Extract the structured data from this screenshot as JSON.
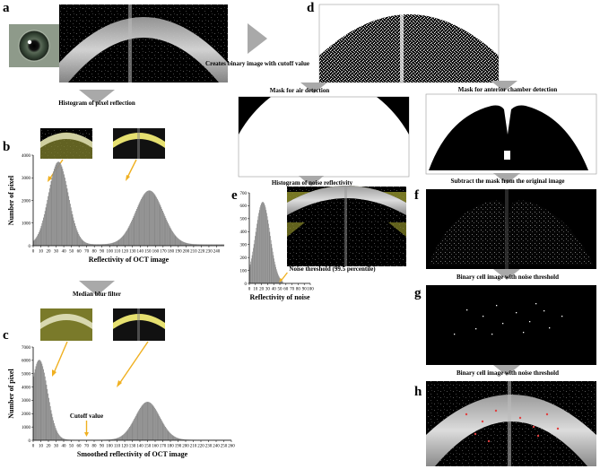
{
  "panel_labels": {
    "a": "a",
    "b": "b",
    "c": "c",
    "d": "d",
    "e": "e",
    "f": "f",
    "g": "g",
    "h": "h"
  },
  "captions": {
    "binary_cutoff": "Creates binary image with cutoff value",
    "histogram_pixel": "Histogram of pixel reflection",
    "median_blur": "Median blur filter",
    "mask_air": "Mask for air detection",
    "mask_ac": "Mask for anterior chamber detection",
    "histogram_noise": "Histogram of noise reflectivity",
    "subtract_mask": "Subtract the mask from the original image",
    "binary_cell_1": "Binary cell image with noise threshold",
    "binary_cell_2": "Binary cell image with noise threshold"
  },
  "colors": {
    "bars": "#8a8a8a",
    "arrow": "#f0b020",
    "highlight": "#d8d020",
    "flow_arrow": "#a9a9a9",
    "cell_dots": "#e04040"
  },
  "chart_data": [
    {
      "type": "bar",
      "panel": "b",
      "xlabel": "Reflectivity of OCT image",
      "ylabel": "Number of pixel",
      "xlim": [
        0,
        250
      ],
      "ylim": [
        0,
        4000
      ],
      "xticks": [
        "0",
        "10",
        "20",
        "30",
        "40",
        "50",
        "60",
        "70",
        "80",
        "90",
        "100",
        "110",
        "120",
        "130",
        "140",
        "150",
        "160",
        "170",
        "180",
        "190",
        "200",
        "210",
        "220",
        "230",
        "240"
      ],
      "yticks": [
        "0",
        "1000",
        "2000",
        "3000",
        "4000"
      ],
      "peaks": [
        {
          "center": 33,
          "height": 3650,
          "width": 13
        },
        {
          "center": 152,
          "height": 2380,
          "width": 18
        }
      ],
      "floor": 60
    },
    {
      "type": "bar",
      "panel": "c",
      "xlabel": "Smoothed reflectivity of OCT image",
      "ylabel": "Number of pixel",
      "annotation": "Cutoff value",
      "cutoff": 70,
      "xlim": [
        0,
        260
      ],
      "ylim": [
        0,
        7000
      ],
      "xticks": [
        "0",
        "10",
        "20",
        "30",
        "40",
        "50",
        "60",
        "70",
        "80",
        "90",
        "100",
        "110",
        "120",
        "130",
        "140",
        "150",
        "160",
        "170",
        "180",
        "190",
        "200",
        "210",
        "220",
        "230",
        "240",
        "250",
        "260"
      ],
      "yticks": [
        "0",
        "1000",
        "2000",
        "3000",
        "4000",
        "5000",
        "6000",
        "7000"
      ],
      "peaks": [
        {
          "center": 8,
          "height": 6000,
          "width": 11
        },
        {
          "center": 150,
          "height": 2850,
          "width": 16
        }
      ],
      "floor": 40
    },
    {
      "type": "bar",
      "panel": "e",
      "xlabel": "Reflectivity of noise",
      "annotation": "Noise threshold (99.5 percentile)",
      "threshold": 55,
      "xlim": [
        0,
        100
      ],
      "ylim": [
        0,
        700
      ],
      "xticks": [
        "0",
        "10",
        "20",
        "30",
        "40",
        "50",
        "60",
        "70",
        "80",
        "90",
        "100"
      ],
      "yticks": [
        "0",
        "100",
        "200",
        "300",
        "400",
        "500",
        "600",
        "700"
      ],
      "peaks": [
        {
          "center": 22,
          "height": 630,
          "width": 12
        }
      ],
      "floor": 0
    }
  ]
}
